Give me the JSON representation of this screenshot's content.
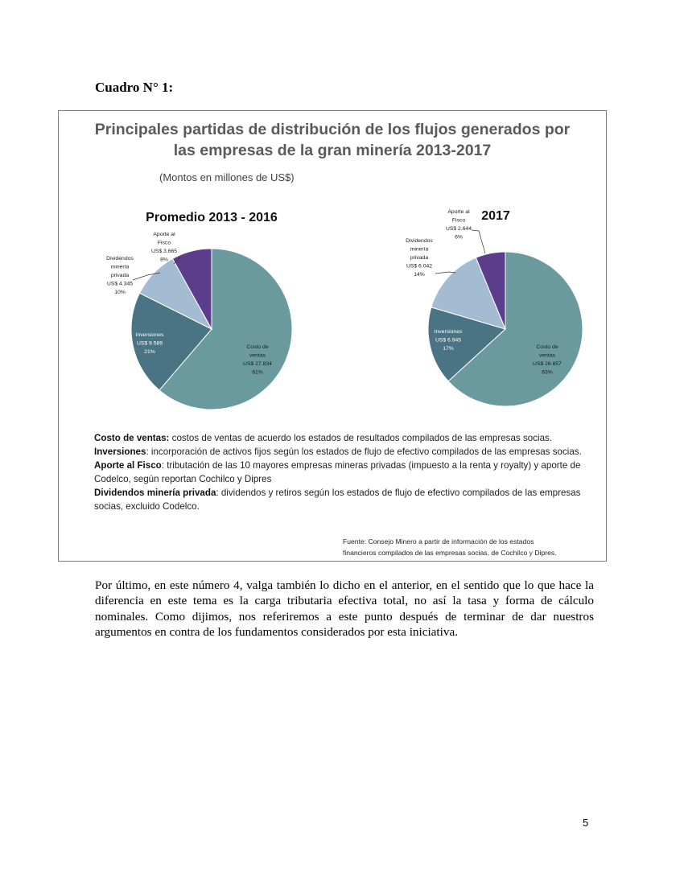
{
  "cuadro_title": "Cuadro N° 1:",
  "figure": {
    "title_line1": "Principales partidas de distribución de los flujos generados por",
    "title_line2": "las empresas de la gran minería 2013-2017",
    "subtitle": "(Montos en millones de US$)",
    "notes": [
      {
        "term": "Costo de ventas:",
        "text": " costos de ventas de acuerdo los estados de resultados compilados de las empresas socias."
      },
      {
        "term": "Inversiones",
        "text": ": incorporación de activos fijos según los estados de flujo de efectivo compilados de las empresas socias."
      },
      {
        "term": "Aporte al Fisco",
        "text": ": tributación de las 10 mayores empresas mineras privadas (impuesto a la renta y royalty) y aporte de Codelco, según reportan Cochilco y Dipres"
      },
      {
        "term": "Dividendos minería privada",
        "text": ": dividendos y retiros según los estados de flujo de efectivo compilados de las empresas socias, excluido Codelco."
      }
    ],
    "source_line1": "Fuente: Consejo Minero a partir de información de los estados",
    "source_line2": "financieros compilados de las empresas socias, de Cochilco y Dipres."
  },
  "chart_data": [
    {
      "type": "pie",
      "title": "Promedio 2013 - 2016",
      "slices": [
        {
          "label_lines": [
            "Costo de",
            "ventas",
            "US$ 27.834",
            "61%"
          ],
          "value": 27834,
          "percent": 61,
          "color": "#6b9a9e"
        },
        {
          "label_lines": [
            "Inversiones",
            "US$ 9.589",
            "21%"
          ],
          "value": 9589,
          "percent": 21,
          "color": "#4a7384"
        },
        {
          "label_lines": [
            "Dividendos",
            "minería",
            "privada",
            "US$ 4.345",
            "10%"
          ],
          "value": 4345,
          "percent": 10,
          "color": "#a4bcd2"
        },
        {
          "label_lines": [
            "Aporte al",
            "Fisco",
            "US$ 3.665",
            "8%"
          ],
          "value": 3665,
          "percent": 8,
          "color": "#5b3d8c"
        }
      ]
    },
    {
      "type": "pie",
      "title": "2017",
      "slices": [
        {
          "label_lines": [
            "Costo de",
            "ventas",
            "US$ 26.857",
            "63%"
          ],
          "value": 26857,
          "percent": 63,
          "color": "#6b9a9e"
        },
        {
          "label_lines": [
            "Inversiones",
            "US$ 6.945",
            "17%"
          ],
          "value": 6945,
          "percent": 17,
          "color": "#4a7384"
        },
        {
          "label_lines": [
            "Dividendos",
            "minería",
            "privada",
            "US$ 6.042",
            "14%"
          ],
          "value": 6042,
          "percent": 14,
          "color": "#a4bcd2"
        },
        {
          "label_lines": [
            "Aporte al",
            "Fisco",
            "US$ 2.644",
            "6%"
          ],
          "value": 2644,
          "percent": 6,
          "color": "#5b3d8c"
        }
      ]
    }
  ],
  "body_paragraph": "Por último, en este número 4, valga también lo dicho en el anterior, en el sentido que lo que hace la diferencia en este tema es la carga tributaria efectiva total, no así la tasa y forma de cálculo nominales.  Como dijimos, nos referiremos a este punto después de terminar de dar nuestros argumentos en contra de los fundamentos considerados por esta iniciativa.",
  "page_number": "5"
}
